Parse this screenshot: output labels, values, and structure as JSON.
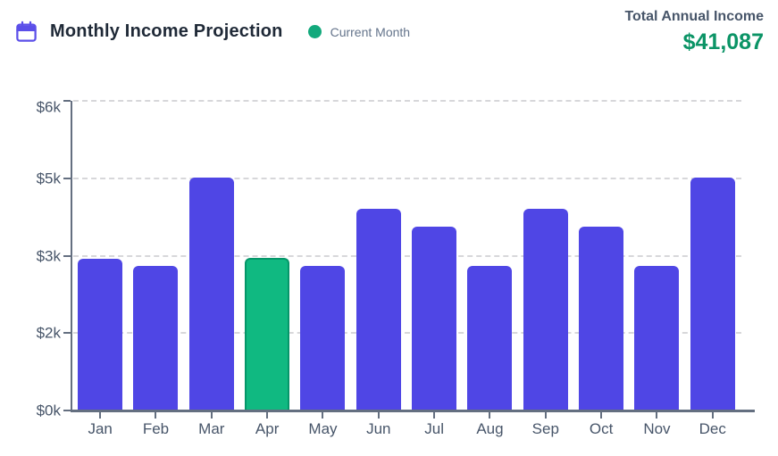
{
  "header": {
    "title": "Monthly Income Projection",
    "legend_label": "Current Month",
    "total_label": "Total Annual Income",
    "total_value": "$41,087"
  },
  "icons": {
    "calendar": "calendar-icon",
    "legend_dot": "legend-dot-icon"
  },
  "colors": {
    "bar": "#4f46e5",
    "current_month_fill": "#10b981",
    "current_month_border": "#059669",
    "legend_dot": "#12a97c",
    "total_value": "#0b9466",
    "calendar_icon": "#5b4fe9",
    "axis": "#646f80",
    "gridline": "#d7d7da",
    "axis_labels": "#475569",
    "title_text": "#1f2937",
    "muted_text": "#64748b"
  },
  "chart_data": {
    "type": "bar",
    "title": "Monthly Income Projection",
    "categories": [
      "Jan",
      "Feb",
      "Mar",
      "Apr",
      "May",
      "Jun",
      "Jul",
      "Aug",
      "Sep",
      "Oct",
      "Nov",
      "Dec"
    ],
    "values": [
      2937,
      2810,
      4520,
      2960,
      2810,
      3900,
      3560,
      2810,
      3900,
      3560,
      2800,
      4520
    ],
    "total": 41087,
    "current_month": "Apr",
    "current_month_index": 3,
    "xlabel": "",
    "ylabel": "",
    "ylim": [
      0,
      6000
    ],
    "y_ticks": [
      {
        "value": 0,
        "label": "$0k"
      },
      {
        "value": 1500,
        "label": "$2k"
      },
      {
        "value": 3000,
        "label": "$3k"
      },
      {
        "value": 4500,
        "label": "$5k"
      },
      {
        "value": 6000,
        "label": "$6k"
      }
    ],
    "grid": "horizontal-dashed",
    "legend": [
      {
        "label": "Current Month",
        "color": "#10b981"
      }
    ],
    "legend_position": "top-left"
  }
}
